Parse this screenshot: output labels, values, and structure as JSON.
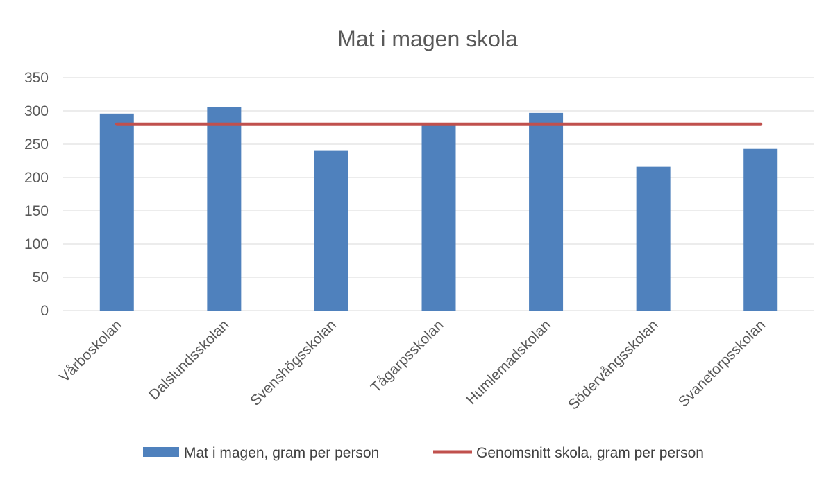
{
  "chart_data": {
    "type": "bar",
    "title": "Mat i magen skola",
    "categories": [
      "Vårboskolan",
      "Dalslundsskolan",
      "Svenshögsskolan",
      "Tågarpsskolan",
      "Humlemadskolan",
      "Södervångsskolan",
      "Svanetorpsskolan"
    ],
    "series": [
      {
        "name": "Mat i magen, gram per person",
        "type": "bar",
        "color": "#4f81bd",
        "values": [
          296,
          306,
          240,
          281,
          297,
          216,
          243
        ]
      },
      {
        "name": "Genomsnitt skola, gram per person",
        "type": "line",
        "color": "#c0504d",
        "values": [
          280,
          280,
          280,
          280,
          280,
          280,
          280
        ]
      }
    ],
    "ylim": [
      0,
      350
    ],
    "yticks": [
      0,
      50,
      100,
      150,
      200,
      250,
      300,
      350
    ],
    "xlabel": "",
    "ylabel": "",
    "grid": true,
    "legend": "bottom"
  }
}
